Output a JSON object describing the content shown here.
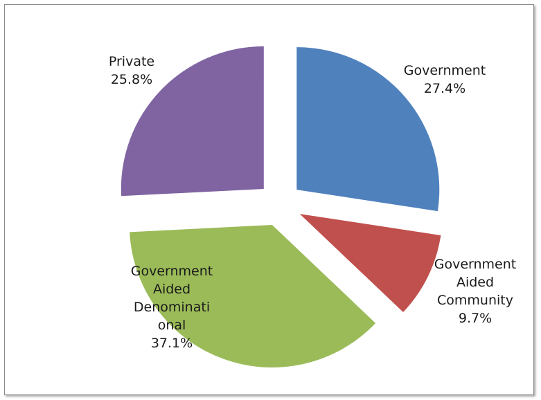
{
  "chart_data": {
    "type": "pie",
    "title": "",
    "exploded": true,
    "slices": [
      {
        "label": "Government",
        "value": 27.4,
        "value_text": "27.4%",
        "color": "#4f81bd",
        "label_lines": [
          "Government",
          "27.4%"
        ]
      },
      {
        "label": "Government Aided Community",
        "value": 9.7,
        "value_text": "9.7%",
        "color": "#c0504d",
        "label_lines": [
          "Government",
          "Aided",
          "Community",
          "9.7%"
        ]
      },
      {
        "label": "Government Aided Denominational",
        "value": 37.1,
        "value_text": "37.1%",
        "color": "#9bbb59",
        "label_lines": [
          "Government",
          "Aided",
          "Denominati",
          "onal",
          "37.1%"
        ]
      },
      {
        "label": "Private",
        "value": 25.8,
        "value_text": "25.8%",
        "color": "#8064a2",
        "label_lines": [
          "Private",
          "25.8%"
        ]
      }
    ],
    "legend": "none"
  }
}
